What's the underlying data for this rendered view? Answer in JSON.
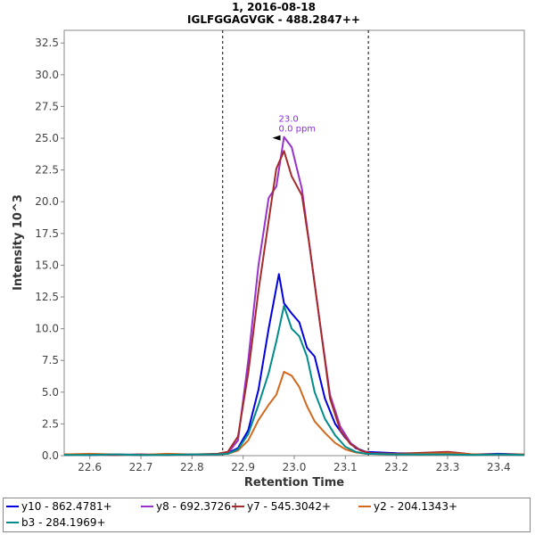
{
  "chart_data": {
    "type": "line",
    "title": "1, 2016-08-18",
    "subtitle": "IGLFGGAGVGK - 488.2847++",
    "xlabel": "Retention Time",
    "ylabel": "Intensity 10^3",
    "xlim": [
      22.55,
      23.45
    ],
    "ylim": [
      0,
      33.5
    ],
    "x_ticks": [
      "22.6",
      "22.7",
      "22.8",
      "22.9",
      "23.0",
      "23.1",
      "23.2",
      "23.3",
      "23.4"
    ],
    "y_ticks": [
      "0.0",
      "2.5",
      "5.0",
      "7.5",
      "10.0",
      "12.5",
      "15.0",
      "17.5",
      "20.0",
      "22.5",
      "25.0",
      "27.5",
      "30.0",
      "32.5"
    ],
    "integration_bounds": [
      22.86,
      23.145
    ],
    "peak_annotation": {
      "x": 22.98,
      "y": 25.1,
      "line1": "23.0",
      "line2": "0.0 ppm"
    },
    "series": [
      {
        "name": "y10 - 862.4781+",
        "color": "#0000e0",
        "x": [
          22.55,
          22.6,
          22.65,
          22.7,
          22.75,
          22.8,
          22.85,
          22.87,
          22.89,
          22.91,
          22.93,
          22.95,
          22.97,
          22.98,
          22.995,
          23.01,
          23.025,
          23.04,
          23.06,
          23.08,
          23.1,
          23.12,
          23.14,
          23.2,
          23.3,
          23.35,
          23.4,
          23.45
        ],
        "y": [
          0.1,
          0.05,
          0.1,
          0.05,
          0.1,
          0.1,
          0.1,
          0.2,
          0.6,
          2.0,
          5.2,
          10.0,
          14.3,
          12.0,
          11.2,
          10.5,
          8.5,
          7.8,
          4.5,
          2.5,
          1.4,
          0.6,
          0.3,
          0.2,
          0.15,
          0.1,
          0.15,
          0.1
        ]
      },
      {
        "name": "y8 - 692.3726+",
        "color": "#9932cc",
        "x": [
          22.55,
          22.6,
          22.65,
          22.7,
          22.75,
          22.8,
          22.85,
          22.87,
          22.89,
          22.91,
          22.93,
          22.95,
          22.965,
          22.98,
          22.995,
          23.015,
          23.03,
          23.05,
          23.07,
          23.09,
          23.11,
          23.13,
          23.15,
          23.2,
          23.3,
          23.35,
          23.4,
          23.45
        ],
        "y": [
          0.05,
          0.1,
          0.05,
          0.1,
          0.05,
          0.1,
          0.1,
          0.2,
          1.2,
          7.5,
          15.0,
          20.3,
          21.2,
          25.1,
          24.3,
          21.0,
          16.5,
          10.5,
          4.8,
          2.3,
          1.0,
          0.4,
          0.2,
          0.1,
          0.2,
          0.1,
          0.1,
          0.1
        ]
      },
      {
        "name": "y7 - 545.3042+",
        "color": "#a52a2a",
        "x": [
          22.55,
          22.6,
          22.65,
          22.7,
          22.75,
          22.8,
          22.85,
          22.87,
          22.89,
          22.91,
          22.93,
          22.95,
          22.965,
          22.98,
          22.995,
          23.015,
          23.03,
          23.05,
          23.07,
          23.09,
          23.11,
          23.13,
          23.15,
          23.2,
          23.3,
          23.35,
          23.4,
          23.45
        ],
        "y": [
          0.05,
          0.1,
          0.05,
          0.1,
          0.05,
          0.1,
          0.15,
          0.3,
          1.5,
          6.5,
          13.0,
          18.5,
          22.6,
          24.0,
          22.0,
          20.5,
          16.5,
          10.5,
          4.5,
          2.0,
          0.9,
          0.4,
          0.2,
          0.15,
          0.3,
          0.1,
          0.1,
          0.1
        ]
      },
      {
        "name": "y2 - 204.1343+",
        "color": "#d2691e",
        "x": [
          22.55,
          22.6,
          22.65,
          22.7,
          22.75,
          22.8,
          22.85,
          22.87,
          22.89,
          22.91,
          22.93,
          22.95,
          22.965,
          22.98,
          22.995,
          23.01,
          23.025,
          23.04,
          23.06,
          23.08,
          23.1,
          23.12,
          23.14,
          23.2,
          23.3,
          23.35,
          23.4,
          23.45
        ],
        "y": [
          0.1,
          0.15,
          0.1,
          0.05,
          0.15,
          0.1,
          0.1,
          0.15,
          0.4,
          1.2,
          2.8,
          4.0,
          4.8,
          6.6,
          6.3,
          5.4,
          3.9,
          2.7,
          1.8,
          1.0,
          0.5,
          0.25,
          0.15,
          0.1,
          0.2,
          0.1,
          0.1,
          0.1
        ]
      },
      {
        "name": "b3 - 284.1969+",
        "color": "#008b8b",
        "x": [
          22.55,
          22.6,
          22.65,
          22.7,
          22.75,
          22.8,
          22.85,
          22.87,
          22.89,
          22.91,
          22.93,
          22.95,
          22.965,
          22.98,
          22.995,
          23.01,
          23.025,
          23.04,
          23.06,
          23.08,
          23.1,
          23.12,
          23.14,
          23.2,
          23.3,
          23.35,
          23.4,
          23.45
        ],
        "y": [
          0.05,
          0.05,
          0.1,
          0.05,
          0.05,
          0.1,
          0.1,
          0.15,
          0.5,
          1.7,
          4.0,
          6.5,
          9.0,
          11.8,
          10.0,
          9.4,
          7.8,
          5.0,
          2.9,
          1.6,
          0.7,
          0.3,
          0.15,
          0.1,
          0.1,
          0.05,
          0.1,
          0.05
        ]
      }
    ],
    "legend_position": "bottom",
    "grid": false
  }
}
